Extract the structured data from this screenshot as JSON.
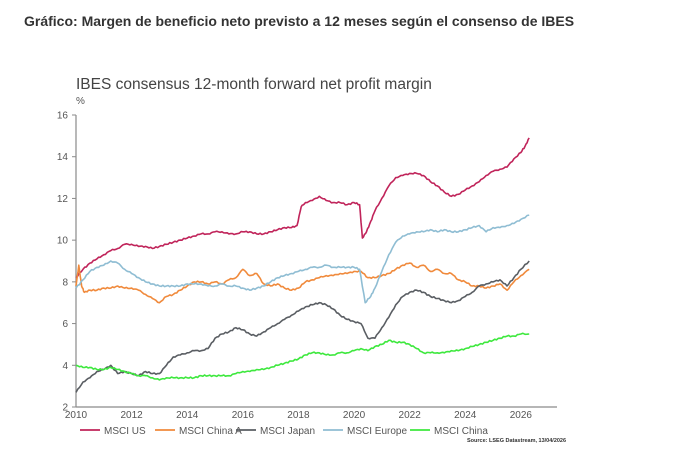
{
  "page": {
    "heading": "Gráfico: Margen de beneficio neto previsto a 12 meses según el consenso de IBES"
  },
  "chart_data": {
    "type": "line",
    "title": "IBES consensus 12-month forward net profit margin",
    "ylabel": "%",
    "xlabel": "",
    "xlim": [
      2010,
      2027.3
    ],
    "ylim": [
      2,
      16
    ],
    "x_ticks": [
      "2010",
      "2012",
      "2014",
      "2016",
      "2018",
      "2020",
      "2022",
      "2024",
      "2026"
    ],
    "y_ticks": [
      "2",
      "4",
      "6",
      "8",
      "10",
      "12",
      "14",
      "16"
    ],
    "grid": false,
    "legend_position": "bottom",
    "source": "Source: LSEG Datastream, 13/04/2026",
    "series": [
      {
        "name": "MSCI US",
        "color": "#c0245a",
        "x": [
          2010.0,
          2010.25,
          2010.5,
          2010.75,
          2011.0,
          2011.25,
          2011.5,
          2011.75,
          2012.0,
          2012.25,
          2012.5,
          2012.75,
          2013.0,
          2013.25,
          2013.5,
          2013.75,
          2014.0,
          2014.25,
          2014.5,
          2014.75,
          2015.0,
          2015.25,
          2015.5,
          2015.75,
          2016.0,
          2016.25,
          2016.5,
          2016.75,
          2017.0,
          2017.25,
          2017.5,
          2017.75,
          2017.95,
          2018.1,
          2018.25,
          2018.5,
          2018.75,
          2019.0,
          2019.25,
          2019.5,
          2019.75,
          2020.0,
          2020.2,
          2020.3,
          2020.45,
          2020.6,
          2020.75,
          2021.0,
          2021.25,
          2021.5,
          2021.75,
          2022.0,
          2022.25,
          2022.5,
          2022.75,
          2023.0,
          2023.25,
          2023.5,
          2023.75,
          2024.0,
          2024.25,
          2024.5,
          2024.75,
          2025.0,
          2025.25,
          2025.5,
          2025.75,
          2026.0,
          2026.15,
          2026.3
        ],
        "values": [
          8.2,
          8.6,
          8.9,
          9.1,
          9.3,
          9.5,
          9.6,
          9.8,
          9.8,
          9.7,
          9.7,
          9.6,
          9.7,
          9.8,
          9.9,
          10.0,
          10.1,
          10.2,
          10.3,
          10.3,
          10.4,
          10.4,
          10.3,
          10.3,
          10.4,
          10.4,
          10.3,
          10.3,
          10.4,
          10.5,
          10.6,
          10.6,
          10.7,
          11.6,
          11.8,
          11.9,
          12.1,
          11.9,
          11.8,
          11.8,
          11.7,
          11.8,
          11.7,
          10.1,
          10.4,
          10.9,
          11.4,
          12.0,
          12.6,
          13.0,
          13.1,
          13.2,
          13.2,
          13.1,
          12.8,
          12.6,
          12.3,
          12.1,
          12.2,
          12.4,
          12.6,
          12.8,
          13.1,
          13.3,
          13.4,
          13.5,
          13.9,
          14.2,
          14.5,
          14.9
        ]
      },
      {
        "name": "MSCI China A",
        "color": "#f08a3c",
        "x": [
          2010.0,
          2010.1,
          2010.2,
          2010.3,
          2010.5,
          2010.75,
          2011.0,
          2011.25,
          2011.5,
          2011.75,
          2012.0,
          2012.25,
          2012.5,
          2012.75,
          2013.0,
          2013.25,
          2013.5,
          2013.75,
          2014.0,
          2014.25,
          2014.5,
          2014.75,
          2015.0,
          2015.25,
          2015.5,
          2015.75,
          2016.0,
          2016.25,
          2016.5,
          2016.75,
          2017.0,
          2017.25,
          2017.5,
          2017.75,
          2018.0,
          2018.25,
          2018.5,
          2018.75,
          2019.0,
          2019.25,
          2019.5,
          2019.75,
          2020.0,
          2020.25,
          2020.5,
          2020.75,
          2021.0,
          2021.25,
          2021.5,
          2021.75,
          2022.0,
          2022.25,
          2022.5,
          2022.75,
          2023.0,
          2023.25,
          2023.5,
          2023.75,
          2024.0,
          2024.25,
          2024.5,
          2024.75,
          2025.0,
          2025.25,
          2025.5,
          2025.75,
          2026.0,
          2026.3
        ],
        "values": [
          7.8,
          8.8,
          7.8,
          7.5,
          7.6,
          7.6,
          7.7,
          7.7,
          7.8,
          7.7,
          7.7,
          7.6,
          7.4,
          7.2,
          7.0,
          7.3,
          7.4,
          7.6,
          7.8,
          8.0,
          8.0,
          7.9,
          8.0,
          7.9,
          8.1,
          8.2,
          8.6,
          8.3,
          8.4,
          7.9,
          7.8,
          7.9,
          7.7,
          7.6,
          7.7,
          8.0,
          8.1,
          8.2,
          8.3,
          8.3,
          8.4,
          8.4,
          8.5,
          8.5,
          8.2,
          8.2,
          8.3,
          8.4,
          8.6,
          8.8,
          8.9,
          8.7,
          8.8,
          8.5,
          8.6,
          8.4,
          8.4,
          8.1,
          8.0,
          7.8,
          7.8,
          7.7,
          7.8,
          7.9,
          7.6,
          8.0,
          8.3,
          8.6
        ]
      },
      {
        "name": "MSCI Japan",
        "color": "#5a5e63",
        "x": [
          2010.0,
          2010.25,
          2010.5,
          2010.75,
          2011.0,
          2011.25,
          2011.5,
          2011.75,
          2012.0,
          2012.25,
          2012.5,
          2012.75,
          2013.0,
          2013.25,
          2013.5,
          2013.75,
          2014.0,
          2014.25,
          2014.5,
          2014.75,
          2015.0,
          2015.25,
          2015.5,
          2015.75,
          2016.0,
          2016.25,
          2016.5,
          2016.75,
          2017.0,
          2017.25,
          2017.5,
          2017.75,
          2018.0,
          2018.25,
          2018.5,
          2018.75,
          2019.0,
          2019.25,
          2019.5,
          2019.75,
          2020.0,
          2020.25,
          2020.5,
          2020.75,
          2021.0,
          2021.25,
          2021.5,
          2021.75,
          2022.0,
          2022.25,
          2022.5,
          2022.75,
          2023.0,
          2023.25,
          2023.5,
          2023.75,
          2024.0,
          2024.25,
          2024.5,
          2024.75,
          2025.0,
          2025.25,
          2025.5,
          2025.75,
          2026.0,
          2026.3
        ],
        "values": [
          2.7,
          3.2,
          3.4,
          3.7,
          3.8,
          4.0,
          3.6,
          3.7,
          3.6,
          3.5,
          3.7,
          3.6,
          3.6,
          4.0,
          4.4,
          4.5,
          4.6,
          4.7,
          4.7,
          4.8,
          5.3,
          5.5,
          5.6,
          5.8,
          5.7,
          5.5,
          5.4,
          5.6,
          5.8,
          6.0,
          6.2,
          6.4,
          6.6,
          6.8,
          6.9,
          7.0,
          6.9,
          6.7,
          6.4,
          6.2,
          6.1,
          6.0,
          5.3,
          5.3,
          5.8,
          6.3,
          6.9,
          7.3,
          7.5,
          7.6,
          7.5,
          7.3,
          7.2,
          7.1,
          7.0,
          7.1,
          7.3,
          7.5,
          7.8,
          7.9,
          8.0,
          8.1,
          7.8,
          8.2,
          8.6,
          9.0
        ]
      },
      {
        "name": "MSCI Europe",
        "color": "#8fbdd3",
        "x": [
          2010.0,
          2010.25,
          2010.5,
          2010.75,
          2011.0,
          2011.25,
          2011.5,
          2011.75,
          2012.0,
          2012.25,
          2012.5,
          2012.75,
          2013.0,
          2013.25,
          2013.5,
          2013.75,
          2014.0,
          2014.25,
          2014.5,
          2014.75,
          2015.0,
          2015.25,
          2015.5,
          2015.75,
          2016.0,
          2016.25,
          2016.5,
          2016.75,
          2017.0,
          2017.25,
          2017.5,
          2017.75,
          2018.0,
          2018.25,
          2018.5,
          2018.75,
          2019.0,
          2019.25,
          2019.5,
          2019.75,
          2020.0,
          2020.2,
          2020.4,
          2020.6,
          2020.75,
          2021.0,
          2021.25,
          2021.5,
          2021.75,
          2022.0,
          2022.25,
          2022.5,
          2022.75,
          2023.0,
          2023.25,
          2023.5,
          2023.75,
          2024.0,
          2024.25,
          2024.5,
          2024.75,
          2025.0,
          2025.25,
          2025.5,
          2025.75,
          2026.0,
          2026.3
        ],
        "values": [
          7.7,
          8.1,
          8.5,
          8.7,
          8.8,
          9.0,
          8.9,
          8.6,
          8.4,
          8.2,
          8.0,
          7.9,
          7.8,
          7.8,
          7.8,
          7.8,
          7.9,
          7.9,
          7.9,
          7.8,
          7.8,
          7.9,
          7.8,
          7.8,
          7.7,
          7.6,
          7.7,
          7.8,
          8.0,
          8.2,
          8.3,
          8.4,
          8.5,
          8.6,
          8.7,
          8.7,
          8.8,
          8.7,
          8.7,
          8.7,
          8.7,
          8.6,
          7.0,
          7.3,
          7.7,
          8.5,
          9.3,
          9.9,
          10.2,
          10.3,
          10.4,
          10.4,
          10.5,
          10.4,
          10.5,
          10.4,
          10.4,
          10.5,
          10.6,
          10.7,
          10.4,
          10.6,
          10.6,
          10.7,
          10.8,
          11.0,
          11.2
        ]
      },
      {
        "name": "MSCI China",
        "color": "#3ee83e",
        "x": [
          2010.0,
          2010.25,
          2010.5,
          2010.75,
          2011.0,
          2011.25,
          2011.5,
          2011.75,
          2012.0,
          2012.25,
          2012.5,
          2012.75,
          2013.0,
          2013.25,
          2013.5,
          2013.75,
          2014.0,
          2014.25,
          2014.5,
          2014.75,
          2015.0,
          2015.25,
          2015.5,
          2015.75,
          2016.0,
          2016.25,
          2016.5,
          2016.75,
          2017.0,
          2017.25,
          2017.5,
          2017.75,
          2018.0,
          2018.25,
          2018.5,
          2018.75,
          2019.0,
          2019.25,
          2019.5,
          2019.75,
          2020.0,
          2020.25,
          2020.5,
          2020.75,
          2021.0,
          2021.25,
          2021.5,
          2021.75,
          2022.0,
          2022.25,
          2022.5,
          2022.75,
          2023.0,
          2023.25,
          2023.5,
          2023.75,
          2024.0,
          2024.25,
          2024.5,
          2024.75,
          2025.0,
          2025.25,
          2025.5,
          2025.75,
          2026.0,
          2026.3
        ],
        "values": [
          4.0,
          3.9,
          3.9,
          3.8,
          3.8,
          3.9,
          3.8,
          3.7,
          3.6,
          3.5,
          3.5,
          3.4,
          3.3,
          3.4,
          3.4,
          3.4,
          3.4,
          3.4,
          3.5,
          3.5,
          3.5,
          3.5,
          3.5,
          3.6,
          3.7,
          3.7,
          3.8,
          3.8,
          3.9,
          4.0,
          4.1,
          4.2,
          4.3,
          4.5,
          4.6,
          4.6,
          4.5,
          4.5,
          4.6,
          4.6,
          4.7,
          4.8,
          4.7,
          4.9,
          5.0,
          5.2,
          5.1,
          5.1,
          5.0,
          4.8,
          4.6,
          4.6,
          4.6,
          4.6,
          4.7,
          4.7,
          4.8,
          4.9,
          5.0,
          5.1,
          5.2,
          5.3,
          5.4,
          5.4,
          5.5,
          5.5
        ]
      }
    ]
  }
}
